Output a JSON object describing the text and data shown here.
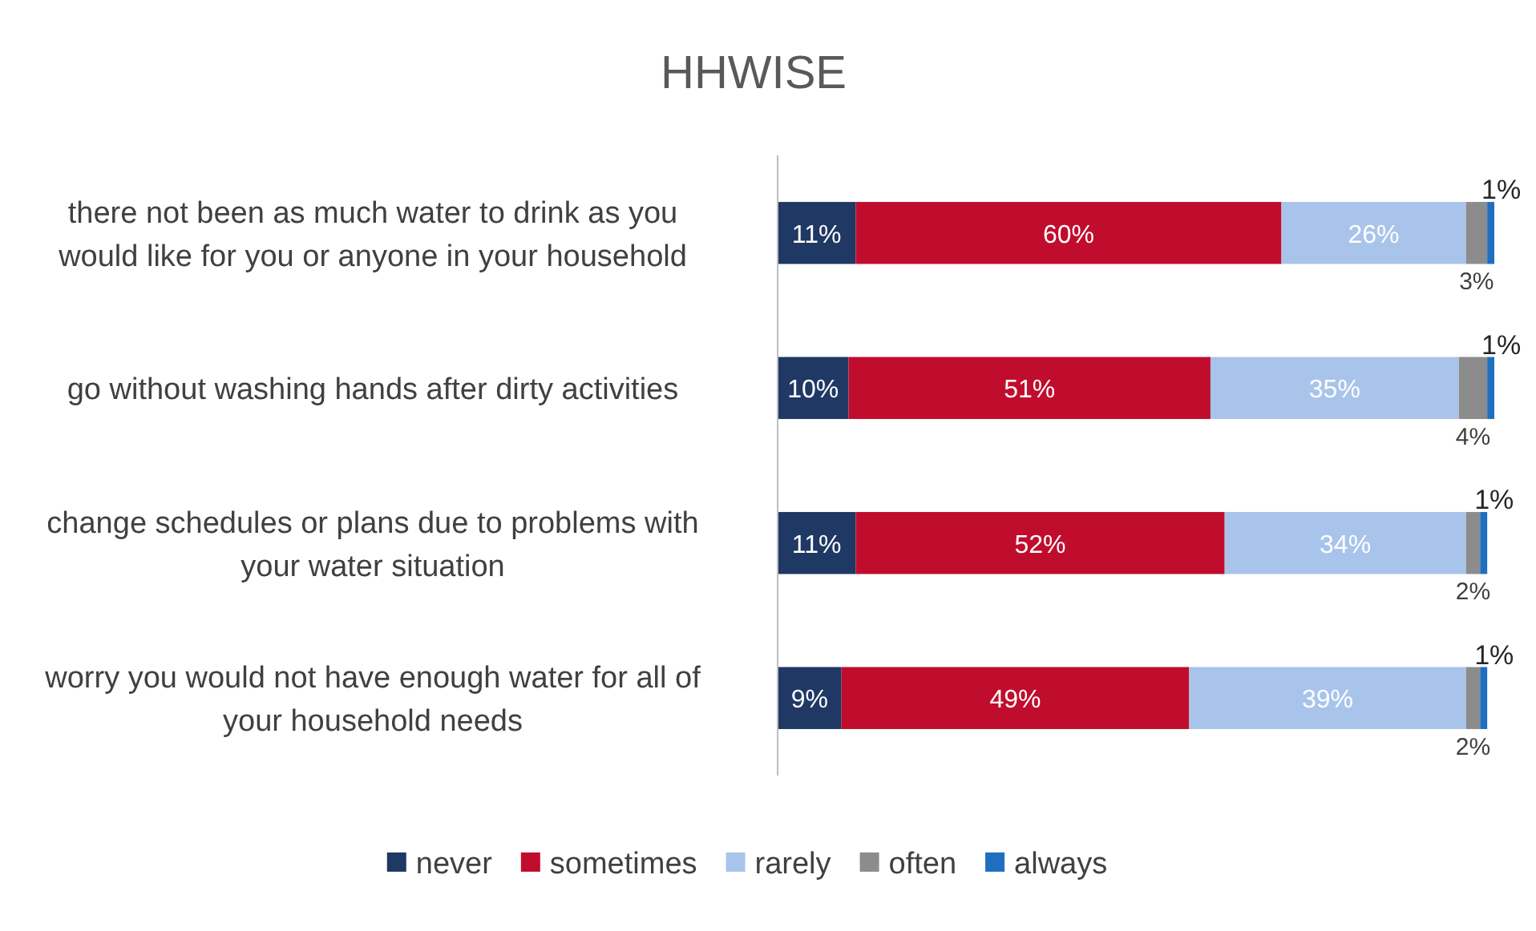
{
  "chart_data": {
    "type": "bar",
    "orientation": "horizontal",
    "stacked": true,
    "title": "HHWISE",
    "categories": [
      "there not been as much water to drink as you would like for you or anyone in your household",
      "go without washing hands after dirty activities",
      "change schedules or plans due to problems with your water situation",
      "worry you would not have enough water for all of your household needs"
    ],
    "series": [
      {
        "name": "never",
        "color": "#1f3864",
        "values": [
          11,
          10,
          11,
          9
        ],
        "value_labels": [
          "11%",
          "10%",
          "11%",
          "9%"
        ]
      },
      {
        "name": "sometimes",
        "color": "#c00d2e",
        "values": [
          60,
          51,
          52,
          49
        ],
        "value_labels": [
          "60%",
          "51%",
          "52%",
          "49%"
        ]
      },
      {
        "name": "rarely",
        "color": "#a9c4eb",
        "values": [
          26,
          35,
          34,
          39
        ],
        "value_labels": [
          "26%",
          "35%",
          "34%",
          "39%"
        ]
      },
      {
        "name": "often",
        "color": "#8c8c8c",
        "values": [
          3,
          4,
          2,
          2
        ],
        "value_labels": [
          "3%",
          "4%",
          "2%",
          "2%"
        ]
      },
      {
        "name": "always",
        "color": "#1f6fc0",
        "values": [
          1,
          1,
          1,
          1
        ],
        "value_labels": [
          "1%",
          "1%",
          "1%",
          "1%"
        ]
      }
    ],
    "legend": "bottom"
  }
}
